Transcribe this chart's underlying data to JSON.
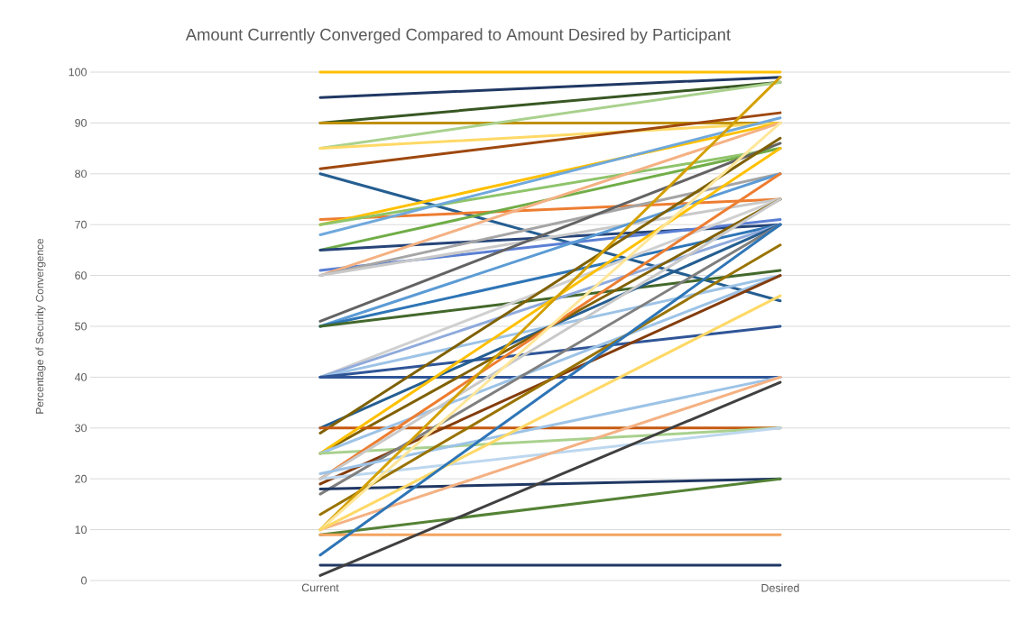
{
  "chart_data": {
    "type": "line",
    "title": "Amount Currently Converged Compared to Amount Desired by Participant",
    "ylabel": "Percentage of Security Convergence",
    "categories": [
      "Current",
      "Desired"
    ],
    "ylim": [
      0,
      100
    ],
    "yticks": [
      0,
      10,
      20,
      30,
      40,
      50,
      60,
      70,
      80,
      90,
      100
    ],
    "grid": "y",
    "series": [
      {
        "color": "#ffc000",
        "values": [
          100,
          100
        ]
      },
      {
        "color": "#203864",
        "values": [
          95,
          99
        ]
      },
      {
        "color": "#385723",
        "values": [
          90,
          98
        ]
      },
      {
        "color": "#bf9000",
        "values": [
          90,
          90
        ]
      },
      {
        "color": "#a9d18e",
        "values": [
          85,
          98
        ]
      },
      {
        "color": "#ffd966",
        "values": [
          85,
          90
        ]
      },
      {
        "color": "#9e480e",
        "values": [
          81,
          92
        ]
      },
      {
        "color": "#255e91",
        "values": [
          80,
          55
        ]
      },
      {
        "color": "#ed7d31",
        "values": [
          71,
          75
        ]
      },
      {
        "color": "#ffc000",
        "values": [
          70,
          90
        ]
      },
      {
        "color": "#8fc46b",
        "values": [
          70,
          85
        ]
      },
      {
        "color": "#6fa8dc",
        "values": [
          68,
          91
        ]
      },
      {
        "color": "#70ad47",
        "values": [
          65,
          85
        ]
      },
      {
        "color": "#264478",
        "values": [
          65,
          70
        ]
      },
      {
        "color": "#5b7fd3",
        "values": [
          61,
          71
        ]
      },
      {
        "color": "#f4b183",
        "values": [
          60,
          90
        ]
      },
      {
        "color": "#a5a5a5",
        "values": [
          60,
          80
        ]
      },
      {
        "color": "#c9c9c9",
        "values": [
          60,
          75
        ]
      },
      {
        "color": "#636363",
        "values": [
          51,
          86
        ]
      },
      {
        "color": "#5b9bd5",
        "values": [
          50,
          80
        ]
      },
      {
        "color": "#2e75b6",
        "values": [
          50,
          70
        ]
      },
      {
        "color": "#43682b",
        "values": [
          50,
          61
        ]
      },
      {
        "color": "#d0d0d0",
        "values": [
          40,
          75
        ]
      },
      {
        "color": "#8faadc",
        "values": [
          40,
          70
        ]
      },
      {
        "color": "#9dc3e6",
        "values": [
          40,
          60
        ]
      },
      {
        "color": "#2f5597",
        "values": [
          40,
          50
        ]
      },
      {
        "color": "#2f5597",
        "values": [
          40,
          40
        ]
      },
      {
        "color": "#255e91",
        "values": [
          30,
          70
        ]
      },
      {
        "color": "#7f6000",
        "values": [
          29,
          87
        ]
      },
      {
        "color": "#806000",
        "values": [
          25,
          75
        ]
      },
      {
        "color": "#c55a11",
        "values": [
          30,
          30
        ]
      },
      {
        "color": "#ffc000",
        "values": [
          25,
          85
        ]
      },
      {
        "color": "#9dc3e6",
        "values": [
          25,
          60
        ]
      },
      {
        "color": "#a9d18e",
        "values": [
          25,
          30
        ]
      },
      {
        "color": "#ed7d31",
        "values": [
          20,
          80
        ]
      },
      {
        "color": "#843c0c",
        "values": [
          19,
          60
        ]
      },
      {
        "color": "#bdd7ee",
        "values": [
          20,
          30
        ]
      },
      {
        "color": "#7f7f7f",
        "values": [
          17,
          70
        ]
      },
      {
        "color": "#c9c9c9",
        "values": [
          20,
          75
        ]
      },
      {
        "color": "#9dc3e6",
        "values": [
          21,
          40
        ]
      },
      {
        "color": "#203864",
        "values": [
          18,
          20
        ]
      },
      {
        "color": "#997300",
        "values": [
          13,
          66
        ]
      },
      {
        "color": "#d4a000",
        "values": [
          10,
          99
        ]
      },
      {
        "color": "#ffe699",
        "values": [
          10,
          90
        ]
      },
      {
        "color": "#f4b183",
        "values": [
          10,
          40
        ]
      },
      {
        "color": "#ffd966",
        "values": [
          10,
          56
        ]
      },
      {
        "color": "#548235",
        "values": [
          9,
          20
        ]
      },
      {
        "color": "#f4a460",
        "values": [
          9,
          9
        ]
      },
      {
        "color": "#2e75b6",
        "values": [
          5,
          70
        ]
      },
      {
        "color": "#203864",
        "values": [
          3,
          3
        ]
      },
      {
        "color": "#404040",
        "values": [
          1,
          39
        ]
      }
    ]
  }
}
